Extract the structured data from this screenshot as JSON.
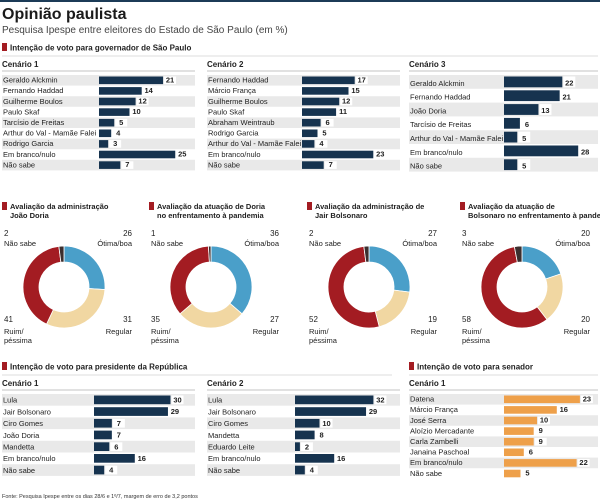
{
  "header": {
    "title": "Opinião paulista",
    "subtitle": "Pesquisa Ipespe entre eleitores do Estado de São Paulo (em %)"
  },
  "sections": {
    "governor": "Intenção de voto para governador de São Paulo",
    "president": "Intenção de voto para presidente da República",
    "senator": "Intenção de voto para senador"
  },
  "footer": "Fonte: Pesquisa Ipespe entre os dias 28/6 e 1º/7, margem de erro de 3,2 pontos",
  "colors": {
    "red": "#a31c22",
    "blue": "#4a9fc9",
    "beige": "#f1d7a2",
    "dark": "#3b2f2f",
    "navy": "#16334f",
    "orange": "#eea04a",
    "rowshade": "#e9e9e9"
  },
  "chart_data": [
    {
      "type": "bar",
      "section": "governor",
      "title": "Cenário 1",
      "categories": [
        "Geraldo Alckmin",
        "Fernando Haddad",
        "Guilherme Boulos",
        "Paulo Skaf",
        "Tarcísio de Freitas",
        "Arthur do Val - Mamãe Falei",
        "Rodrigo Garcia",
        "Em branco/nulo",
        "Não sabe"
      ],
      "values": [
        21,
        14,
        12,
        10,
        5,
        4,
        3,
        25,
        7
      ]
    },
    {
      "type": "bar",
      "section": "governor",
      "title": "Cenário 2",
      "categories": [
        "Fernando Haddad",
        "Márcio França",
        "Guilherme Boulos",
        "Paulo Skaf",
        "Abraham Weintraub",
        "Rodrigo Garcia",
        "Arthur do Val - Mamãe Falei",
        "Em branco/nulo",
        "Não sabe"
      ],
      "values": [
        17,
        15,
        12,
        11,
        6,
        5,
        4,
        23,
        7
      ]
    },
    {
      "type": "bar",
      "section": "governor",
      "title": "Cenário 3",
      "categories": [
        "Geraldo Alckmin",
        "Fernando Haddad",
        "João Doria",
        "Tarcísio de Freitas",
        "Arthur do Val - Mamãe Falei",
        "Em branco/nulo",
        "Não sabe"
      ],
      "values": [
        22,
        21,
        13,
        6,
        5,
        28,
        5
      ]
    },
    {
      "type": "pie",
      "title": "Avaliação da administração João Doria",
      "categories": [
        "Ótima/boa",
        "Regular",
        "Ruim/ péssima",
        "Não sabe"
      ],
      "values": [
        26,
        31,
        41,
        2
      ]
    },
    {
      "type": "pie",
      "title": "Avaliação da atuação de Doria no enfrentamento à pandemia",
      "categories": [
        "Ótima/boa",
        "Regular",
        "Ruim/ péssima",
        "Não sabe"
      ],
      "values": [
        36,
        27,
        35,
        1
      ]
    },
    {
      "type": "pie",
      "title": "Avaliação da administração de Jair Bolsonaro",
      "categories": [
        "Ótima/boa",
        "Regular",
        "Ruim/ péssima",
        "Não sabe"
      ],
      "values": [
        27,
        19,
        52,
        2
      ]
    },
    {
      "type": "pie",
      "title": "Avaliação da atuação de Bolsonaro no enfrentamento à pandemia",
      "categories": [
        "Ótima/boa",
        "Regular",
        "Ruim/ péssima",
        "Não sabe"
      ],
      "values": [
        20,
        20,
        58,
        3
      ]
    },
    {
      "type": "bar",
      "section": "president",
      "title": "Cenário 1",
      "categories": [
        "Lula",
        "Jair Bolsonaro",
        "Ciro Gomes",
        "João Doria",
        "Mandetta",
        "Em branco/nulo",
        "Não sabe"
      ],
      "values": [
        30,
        29,
        7,
        7,
        6,
        16,
        4
      ]
    },
    {
      "type": "bar",
      "section": "president",
      "title": "Cenário 2",
      "categories": [
        "Lula",
        "Jair Bolsonaro",
        "Ciro Gomes",
        "Mandetta",
        "Eduardo Leite",
        "Em branco/nulo",
        "Não sabe"
      ],
      "values": [
        32,
        29,
        10,
        8,
        2,
        16,
        4
      ]
    },
    {
      "type": "bar",
      "section": "senator",
      "title": "Cenário 1",
      "categories": [
        "Datena",
        "Márcio França",
        "José Serra",
        "Aloízio Mercadante",
        "Carla Zambelli",
        "Janaina Paschoal",
        "Em branco/nulo",
        "Não sabe"
      ],
      "values": [
        23,
        16,
        10,
        9,
        9,
        6,
        22,
        5
      ]
    }
  ]
}
